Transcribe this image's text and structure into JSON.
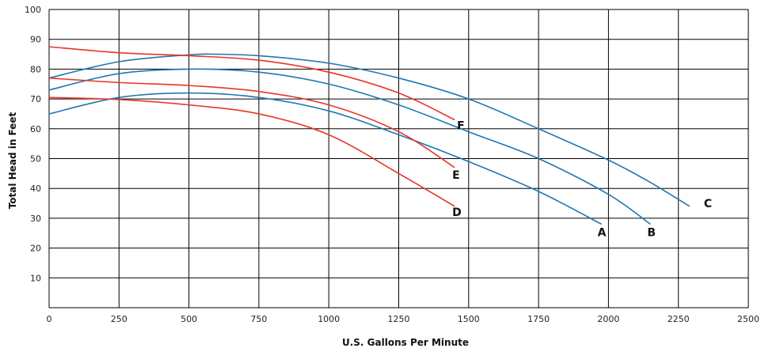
{
  "chart_data": {
    "type": "line",
    "xlabel": "U.S. Gallons Per Minute",
    "ylabel": "Total Head in Feet",
    "xlim": [
      0,
      2500
    ],
    "ylim": [
      0,
      100
    ],
    "x_ticks": [
      "0",
      "250",
      "500",
      "750",
      "1000",
      "1250",
      "1500",
      "1750",
      "2000",
      "2250",
      "2500"
    ],
    "y_ticks": [
      "10",
      "20",
      "30",
      "40",
      "50",
      "60",
      "70",
      "80",
      "90",
      "100"
    ],
    "grid": true,
    "legend": "none",
    "colors": {
      "blue": "#1f77b4",
      "red": "#e8352a",
      "grid": "#000000"
    },
    "series": [
      {
        "name": "A",
        "color": "#1f77b4",
        "points": [
          [
            0,
            65
          ],
          [
            250,
            70.5
          ],
          [
            500,
            72
          ],
          [
            750,
            70.5
          ],
          [
            1000,
            66
          ],
          [
            1250,
            58
          ],
          [
            1500,
            49
          ],
          [
            1750,
            39
          ],
          [
            1975,
            28
          ]
        ]
      },
      {
        "name": "B",
        "color": "#1f77b4",
        "points": [
          [
            0,
            73
          ],
          [
            250,
            78.5
          ],
          [
            500,
            80
          ],
          [
            750,
            79
          ],
          [
            1000,
            75
          ],
          [
            1250,
            68
          ],
          [
            1500,
            59
          ],
          [
            1750,
            50
          ],
          [
            2000,
            38
          ],
          [
            2150,
            28
          ]
        ]
      },
      {
        "name": "C",
        "color": "#1f77b4",
        "points": [
          [
            0,
            77
          ],
          [
            250,
            82.5
          ],
          [
            500,
            84.8
          ],
          [
            600,
            85
          ],
          [
            750,
            84.5
          ],
          [
            1000,
            82
          ],
          [
            1250,
            77
          ],
          [
            1500,
            70
          ],
          [
            1750,
            60
          ],
          [
            2000,
            49.5
          ],
          [
            2150,
            42
          ],
          [
            2290,
            34
          ]
        ]
      },
      {
        "name": "D",
        "color": "#e8352a",
        "points": [
          [
            0,
            70.5
          ],
          [
            250,
            69.8
          ],
          [
            500,
            68
          ],
          [
            750,
            65
          ],
          [
            1000,
            58
          ],
          [
            1250,
            45
          ],
          [
            1450,
            34
          ]
        ]
      },
      {
        "name": "E",
        "color": "#e8352a",
        "points": [
          [
            0,
            77
          ],
          [
            250,
            75.5
          ],
          [
            500,
            74.5
          ],
          [
            750,
            72.5
          ],
          [
            1000,
            68
          ],
          [
            1250,
            59
          ],
          [
            1450,
            47
          ]
        ]
      },
      {
        "name": "F",
        "color": "#e8352a",
        "points": [
          [
            0,
            87.5
          ],
          [
            250,
            85.5
          ],
          [
            500,
            84.5
          ],
          [
            750,
            83
          ],
          [
            1000,
            79
          ],
          [
            1250,
            72
          ],
          [
            1450,
            63
          ]
        ]
      }
    ]
  }
}
